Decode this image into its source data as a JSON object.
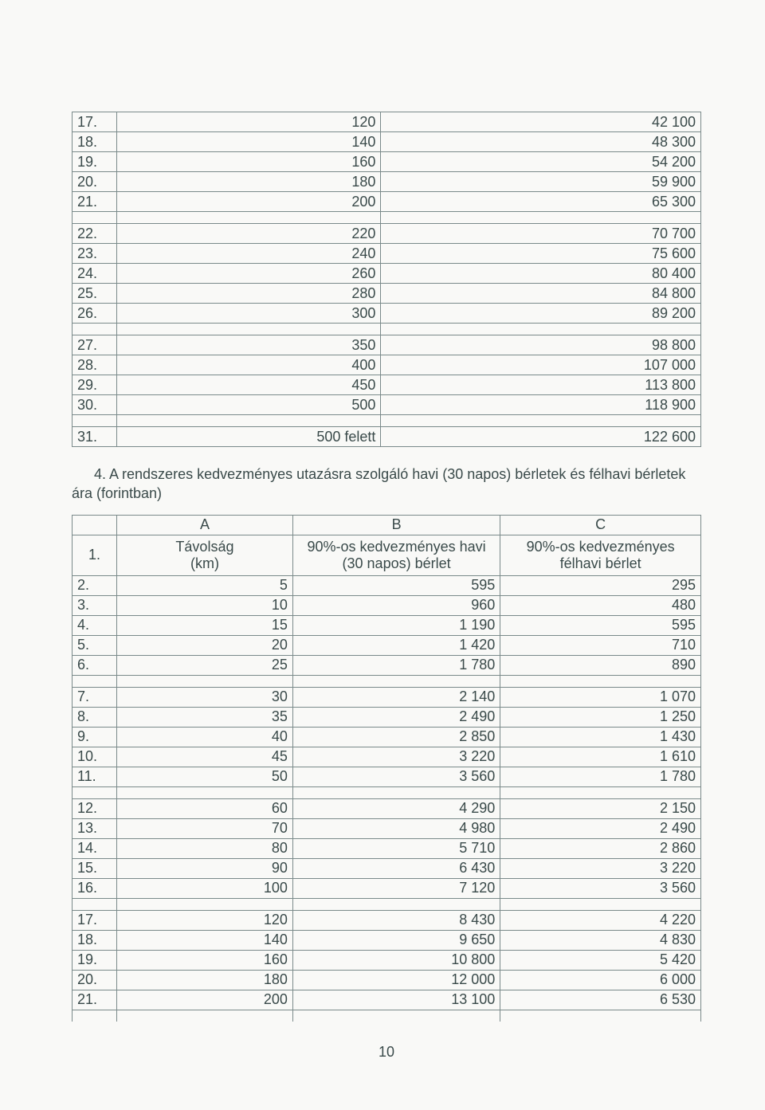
{
  "colors": {
    "text": "#3a4a4a",
    "border": "#7a8a8a",
    "background": "#f9f9f7"
  },
  "typography": {
    "font_family": "Arial, Helvetica, sans-serif",
    "body_fontsize_pt": 13
  },
  "table1": {
    "type": "table",
    "columns": [
      "#",
      "value_a",
      "value_b"
    ],
    "col_align": [
      "left",
      "right",
      "right"
    ],
    "groups": [
      [
        {
          "n": "17.",
          "a": "120",
          "b": "42 100"
        },
        {
          "n": "18.",
          "a": "140",
          "b": "48 300"
        },
        {
          "n": "19.",
          "a": "160",
          "b": "54 200"
        },
        {
          "n": "20.",
          "a": "180",
          "b": "59 900"
        },
        {
          "n": "21.",
          "a": "200",
          "b": "65 300"
        }
      ],
      [
        {
          "n": "22.",
          "a": "220",
          "b": "70 700"
        },
        {
          "n": "23.",
          "a": "240",
          "b": "75 600"
        },
        {
          "n": "24.",
          "a": "260",
          "b": "80 400"
        },
        {
          "n": "25.",
          "a": "280",
          "b": "84 800"
        },
        {
          "n": "26.",
          "a": "300",
          "b": "89 200"
        }
      ],
      [
        {
          "n": "27.",
          "a": "350",
          "b": "98 800"
        },
        {
          "n": "28.",
          "a": "400",
          "b": "107 000"
        },
        {
          "n": "29.",
          "a": "450",
          "b": "113 800"
        },
        {
          "n": "30.",
          "a": "500",
          "b": "118 900"
        }
      ],
      [
        {
          "n": "31.",
          "a": "500 felett",
          "b": "122 600"
        }
      ]
    ]
  },
  "caption4": "4. A rendszeres kedvezményes utazásra szolgáló havi (30 napos) bérletek és félhavi bérletek ára (forintban)",
  "table2": {
    "type": "table",
    "header_letters": [
      "A",
      "B",
      "C"
    ],
    "row1_n": "1.",
    "col_headers": {
      "A": "Távolság\n(km)",
      "B": "90%-os kedvezményes havi\n(30 napos) bérlet",
      "C": "90%-os kedvezményes\nfélhavi bérlet"
    },
    "col_align": [
      "left",
      "right",
      "right",
      "right"
    ],
    "groups": [
      [
        {
          "n": "2.",
          "a": "5",
          "b": "595",
          "c": "295"
        },
        {
          "n": "3.",
          "a": "10",
          "b": "960",
          "c": "480"
        },
        {
          "n": "4.",
          "a": "15",
          "b": "1 190",
          "c": "595"
        },
        {
          "n": "5.",
          "a": "20",
          "b": "1 420",
          "c": "710"
        },
        {
          "n": "6.",
          "a": "25",
          "b": "1 780",
          "c": "890"
        }
      ],
      [
        {
          "n": "7.",
          "a": "30",
          "b": "2 140",
          "c": "1 070"
        },
        {
          "n": "8.",
          "a": "35",
          "b": "2 490",
          "c": "1 250"
        },
        {
          "n": "9.",
          "a": "40",
          "b": "2 850",
          "c": "1 430"
        },
        {
          "n": "10.",
          "a": "45",
          "b": "3 220",
          "c": "1 610"
        },
        {
          "n": "11.",
          "a": "50",
          "b": "3 560",
          "c": "1 780"
        }
      ],
      [
        {
          "n": "12.",
          "a": "60",
          "b": "4 290",
          "c": "2 150"
        },
        {
          "n": "13.",
          "a": "70",
          "b": "4 980",
          "c": "2 490"
        },
        {
          "n": "14.",
          "a": "80",
          "b": "5 710",
          "c": "2 860"
        },
        {
          "n": "15.",
          "a": "90",
          "b": "6 430",
          "c": "3 220"
        },
        {
          "n": "16.",
          "a": "100",
          "b": "7 120",
          "c": "3 560"
        }
      ],
      [
        {
          "n": "17.",
          "a": "120",
          "b": "8 430",
          "c": "4 220"
        },
        {
          "n": "18.",
          "a": "140",
          "b": "9 650",
          "c": "4 830"
        },
        {
          "n": "19.",
          "a": "160",
          "b": "10 800",
          "c": "5 420"
        },
        {
          "n": "20.",
          "a": "180",
          "b": "12 000",
          "c": "6 000"
        },
        {
          "n": "21.",
          "a": "200",
          "b": "13 100",
          "c": "6 530"
        }
      ]
    ]
  },
  "page_number": "10"
}
